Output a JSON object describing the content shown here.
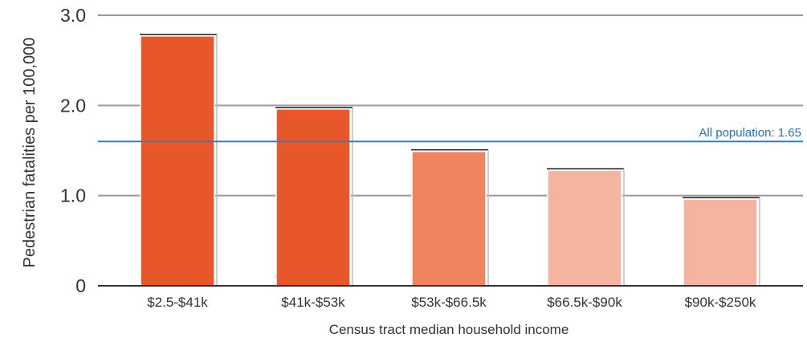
{
  "chart_data": {
    "type": "bar",
    "title": "",
    "xlabel": "Census tract median household income",
    "ylabel": "Pedestrian fatalities per 100,000",
    "ylim": [
      0,
      3.0
    ],
    "y_ticks": [
      "0",
      "1.0",
      "2.0",
      "3.0"
    ],
    "y_tick_values": [
      0,
      1.0,
      2.0,
      3.0
    ],
    "grid": true,
    "categories": [
      "$2.5-$41k",
      "$41k-$53k",
      "$53k-$66.5k",
      "$66.5k-$90k",
      "$90k-$250k"
    ],
    "values": [
      2.77,
      1.96,
      1.49,
      1.28,
      0.96
    ],
    "bar_colors": [
      "#e8572a",
      "#e8572a",
      "#f0845f",
      "#f4b4a0",
      "#f4b4a0"
    ],
    "reference_line": {
      "label": "All population: 1.65",
      "value": 1.6,
      "color": "#2a7fd4"
    }
  }
}
